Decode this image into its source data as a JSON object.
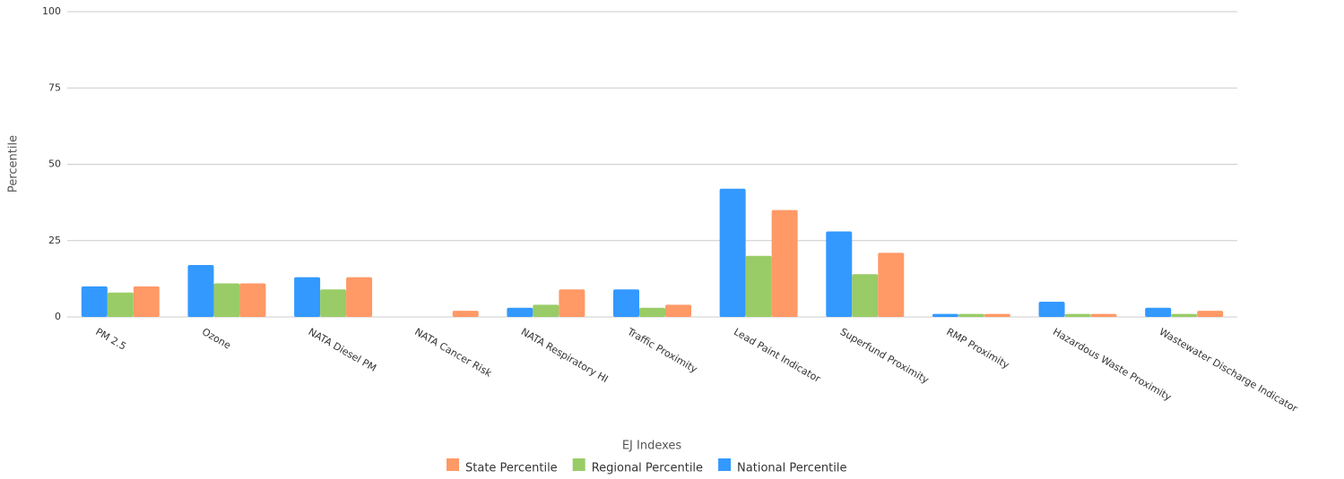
{
  "chart_data": {
    "type": "bar",
    "x_label": "EJ Indexes",
    "y_label": "Percentile",
    "categories": [
      "PM 2.5",
      "Ozone",
      "NATA Diesel PM",
      "NATA Cancer Risk",
      "NATA Respiratory HI",
      "Traffic Proximity",
      "Lead Paint Indicator",
      "Superfund Proximity",
      "RMP Proximity",
      "Hazardous Waste Proximity",
      "Wastewater Discharge Indicator"
    ],
    "series": [
      {
        "name": "State Percentile",
        "color": "#ff9966",
        "values": [
          10,
          11,
          13,
          2,
          9,
          4,
          35,
          21,
          1,
          1,
          2
        ]
      },
      {
        "name": "Regional Percentile",
        "color": "#99cc66",
        "values": [
          8,
          11,
          9,
          0,
          4,
          3,
          20,
          14,
          1,
          1,
          1
        ]
      },
      {
        "name": "National Percentile",
        "color": "#3399ff",
        "values": [
          10,
          17,
          13,
          0,
          3,
          9,
          42,
          28,
          1,
          5,
          3
        ]
      }
    ],
    "ylim": [
      0,
      100
    ],
    "yticks": [
      0,
      25,
      50,
      75,
      100
    ],
    "grid": true
  }
}
